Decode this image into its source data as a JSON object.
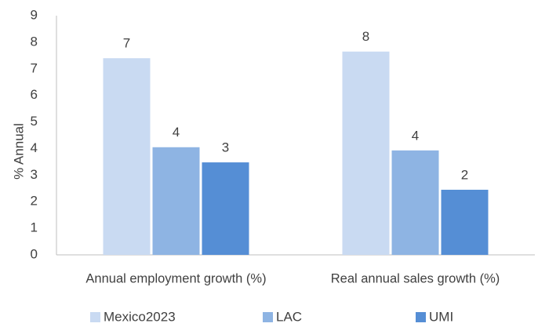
{
  "chart_data": {
    "type": "bar",
    "title": "",
    "xlabel": "",
    "ylabel": "% Annual",
    "ylim": [
      0,
      9
    ],
    "yticks": [
      0,
      1,
      2,
      3,
      4,
      5,
      6,
      7,
      8,
      9
    ],
    "grid": false,
    "legend_position": "bottom",
    "categories": [
      "Annual employment growth (%)",
      "Real annual sales growth (%)"
    ],
    "series": [
      {
        "name": "Mexico2023",
        "values": [
          7.4,
          7.65
        ],
        "labels": [
          "7",
          "8"
        ],
        "color": "#c9daf2"
      },
      {
        "name": "LAC",
        "values": [
          4.05,
          3.93
        ],
        "labels": [
          "4",
          "4"
        ],
        "color": "#8eb4e3"
      },
      {
        "name": "UMI",
        "values": [
          3.48,
          2.45
        ],
        "labels": [
          "3",
          "2"
        ],
        "color": "#558ed5"
      }
    ]
  }
}
